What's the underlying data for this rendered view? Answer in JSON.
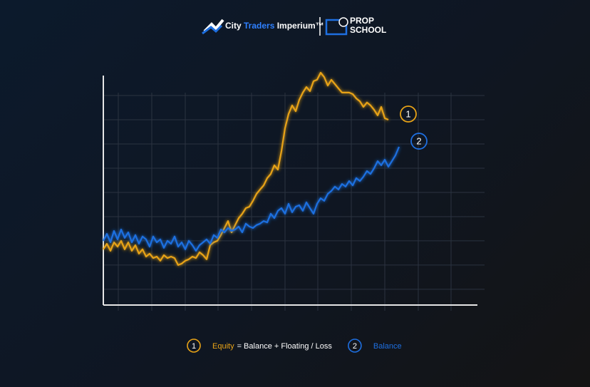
{
  "header": {
    "brand": [
      "City",
      "Traders",
      "Imperium™"
    ],
    "partner": [
      "PROP",
      "SCHOOL"
    ]
  },
  "chart_data": {
    "type": "line",
    "x": [
      0,
      1,
      2,
      3,
      4,
      5,
      6,
      7,
      8,
      9,
      10,
      11,
      12,
      13,
      14,
      15,
      16,
      17,
      18,
      19,
      20,
      21,
      22,
      23,
      24,
      25,
      26,
      27,
      28,
      29,
      30,
      31,
      32,
      33,
      34,
      35,
      36,
      37,
      38,
      39,
      40,
      41,
      42,
      43,
      44,
      45,
      46,
      47,
      48,
      49,
      50,
      51,
      52,
      53,
      54,
      55,
      56,
      57,
      58,
      59,
      60,
      61,
      62,
      63,
      64,
      65,
      66,
      67,
      68,
      69,
      70,
      71,
      72,
      73,
      74,
      75,
      76,
      77,
      78,
      79,
      80,
      81,
      82,
      83
    ],
    "series": [
      {
        "name": "Equity",
        "marker": "1",
        "description": "= Balance + Floating / Loss",
        "color": "#e8a317",
        "values": [
          2.65,
          2.88,
          2.59,
          2.94,
          2.76,
          3.0,
          2.65,
          2.94,
          2.59,
          2.82,
          2.47,
          2.65,
          2.35,
          2.47,
          2.29,
          2.35,
          2.18,
          2.41,
          2.29,
          2.35,
          2.29,
          2.0,
          2.06,
          2.18,
          2.24,
          2.35,
          2.29,
          2.53,
          2.41,
          2.24,
          2.82,
          2.94,
          3.0,
          3.24,
          3.53,
          3.82,
          3.35,
          3.65,
          3.94,
          4.12,
          4.35,
          4.41,
          4.65,
          4.94,
          5.12,
          5.29,
          5.59,
          5.76,
          6.12,
          5.94,
          6.71,
          7.65,
          8.24,
          8.59,
          8.35,
          8.82,
          9.12,
          9.35,
          9.18,
          9.59,
          9.65,
          9.94,
          9.76,
          9.41,
          9.65,
          9.47,
          9.29,
          9.12,
          9.12,
          9.12,
          9.06,
          8.88,
          8.76,
          8.53,
          8.71,
          8.59,
          8.41,
          8.18,
          8.53,
          8.06,
          8.0,
          null,
          null,
          null
        ]
      },
      {
        "name": "Balance",
        "marker": "2",
        "color": "#1e6fe0",
        "values": [
          3.0,
          3.29,
          2.94,
          3.41,
          3.06,
          3.47,
          3.12,
          3.35,
          2.94,
          3.24,
          2.88,
          3.18,
          3.06,
          2.76,
          3.18,
          2.94,
          3.06,
          2.71,
          3.0,
          2.88,
          3.18,
          2.76,
          2.94,
          2.65,
          3.0,
          2.82,
          2.59,
          2.82,
          2.94,
          3.06,
          2.88,
          3.24,
          3.12,
          3.47,
          3.35,
          3.53,
          3.41,
          3.47,
          3.59,
          3.35,
          3.71,
          3.59,
          3.53,
          3.65,
          3.71,
          3.82,
          3.76,
          4.12,
          3.94,
          4.24,
          4.35,
          4.12,
          4.53,
          4.18,
          4.41,
          4.47,
          4.24,
          4.59,
          4.35,
          4.12,
          4.53,
          4.76,
          4.65,
          4.94,
          5.06,
          5.24,
          5.12,
          5.35,
          5.24,
          5.47,
          5.29,
          5.59,
          5.47,
          5.65,
          5.88,
          5.76,
          6.0,
          6.29,
          6.12,
          6.35,
          6.06,
          6.29,
          6.53,
          6.88
        ]
      }
    ],
    "xlim": [
      0,
      105
    ],
    "xticks": [
      4.2,
      13.6,
      23,
      32.2,
      41.6,
      51,
      60.2,
      69.6,
      79,
      88.4,
      97.6
    ],
    "ylim": [
      0.35,
      10
    ],
    "yticks": [
      1,
      2,
      3,
      4,
      5,
      6,
      7,
      8,
      9
    ],
    "grid": true
  }
}
